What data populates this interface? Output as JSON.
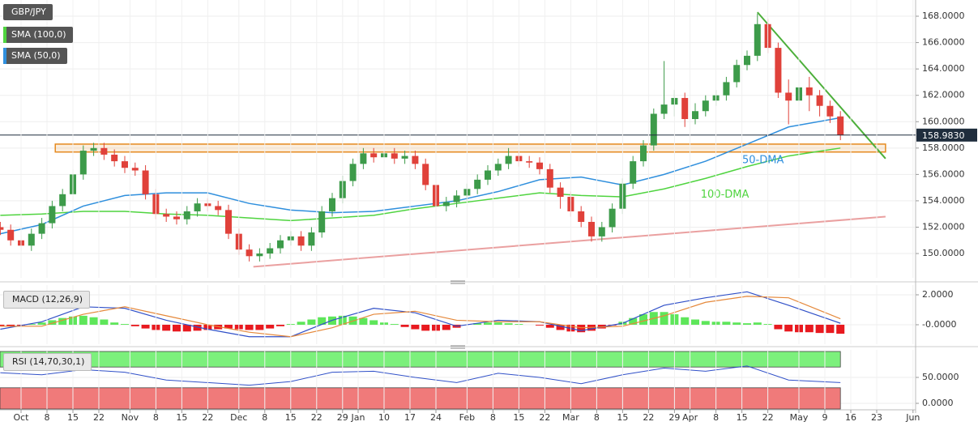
{
  "chart_data": [
    {
      "type": "candlestick",
      "symbol": "GBP/JPY",
      "xlim": [
        -4.06,
        172.5
      ],
      "ylim": [
        148.16,
        169.23
      ],
      "yticks": [
        {
          "value": 150,
          "label": "150.0000"
        },
        {
          "value": 152,
          "label": "152.0000"
        },
        {
          "value": 154,
          "label": "154.0000"
        },
        {
          "value": 156,
          "label": "156.0000"
        },
        {
          "value": 158,
          "label": "158.0000"
        },
        {
          "value": 160,
          "label": "160.0000"
        },
        {
          "value": 162,
          "label": "162.0000"
        },
        {
          "value": 164,
          "label": "164.0000"
        },
        {
          "value": 166,
          "label": "166.0000"
        },
        {
          "value": 168,
          "label": "168.0000"
        }
      ],
      "grid": true,
      "up_color": "#3d9b4a",
      "down_color": "#e0413a",
      "x": [
        -4,
        -2,
        0,
        2,
        4,
        6,
        8,
        10,
        12,
        14,
        16,
        18,
        20,
        22,
        24,
        26,
        28,
        30,
        32,
        34,
        36,
        38,
        40,
        42,
        44,
        46,
        48,
        50,
        52,
        54,
        56,
        58,
        60,
        62,
        64,
        66,
        68,
        70,
        72,
        74,
        76,
        78,
        80,
        82,
        84,
        86,
        88,
        90,
        92,
        94,
        96,
        98,
        100,
        102,
        104,
        106,
        108,
        110,
        112,
        114,
        116,
        118,
        120,
        122,
        124,
        126,
        128,
        130,
        132,
        134,
        136,
        138,
        140,
        142,
        144,
        146,
        148,
        150,
        152,
        154,
        156,
        158
      ],
      "open": [
        152,
        151.8,
        151,
        150.6,
        151.5,
        152.3,
        153.6,
        154.5,
        156,
        157.8,
        158,
        157.5,
        157,
        156.5,
        156.3,
        154.5,
        153,
        152.8,
        152.6,
        153.2,
        153.8,
        153.6,
        153.3,
        151.5,
        150.3,
        149.8,
        150,
        150.4,
        151,
        151.3,
        150.6,
        151.6,
        153.2,
        154.2,
        155.5,
        156.8,
        157.6,
        157.3,
        157.6,
        157.2,
        157.4,
        156.8,
        155.2,
        153.6,
        153.9,
        154.4,
        154.9,
        155.6,
        156.3,
        156.8,
        157.4,
        157,
        156.9,
        156.4,
        155,
        154.3,
        153.2,
        152.4,
        151.3,
        152,
        153.4,
        155.3,
        157,
        158.2,
        160.6,
        161.3,
        161.8,
        160.2,
        160.8,
        161.6,
        162,
        163,
        164.3,
        165,
        167.4,
        165.6,
        162.2,
        161.6,
        162.6,
        162,
        161.2,
        160.4
      ],
      "high": [
        152.4,
        152.2,
        151.4,
        151.9,
        152.7,
        154.0,
        154.9,
        156.4,
        158.2,
        158.4,
        158.4,
        157.9,
        157.4,
        156.9,
        156.7,
        154.9,
        153.4,
        153.2,
        153.6,
        154.2,
        154.2,
        154.0,
        153.7,
        151.9,
        150.7,
        150.4,
        150.8,
        151.4,
        151.7,
        151.7,
        152.0,
        153.6,
        154.6,
        155.9,
        157.2,
        158.0,
        158.0,
        158.0,
        158.0,
        157.8,
        157.8,
        157.2,
        155.6,
        154.3,
        154.8,
        155.3,
        156.0,
        156.7,
        157.2,
        158.0,
        157.8,
        157.4,
        157.3,
        156.8,
        155.4,
        154.7,
        153.6,
        152.8,
        152.4,
        153.8,
        155.7,
        157.4,
        158.6,
        161.0,
        164.6,
        162.4,
        162.2,
        161.4,
        162.0,
        162.4,
        163.4,
        164.7,
        165.4,
        168.2,
        167.8,
        166.0,
        163.2,
        164.2,
        163.4,
        162.4,
        161.6,
        160.8
      ],
      "low": [
        151.4,
        150.6,
        150.2,
        150.2,
        151.1,
        151.9,
        153.2,
        154.1,
        155.6,
        157.4,
        157.1,
        156.6,
        156.1,
        155.9,
        154.1,
        152.6,
        152.4,
        152.2,
        152.2,
        152.8,
        153.2,
        152.9,
        151.1,
        149.9,
        149.4,
        149.4,
        149.6,
        150.0,
        150.6,
        150.2,
        150.2,
        151.2,
        152.8,
        153.8,
        155.1,
        156.4,
        156.9,
        156.9,
        156.8,
        156.8,
        156.4,
        154.8,
        153.2,
        153.2,
        153.5,
        154.0,
        154.5,
        155.2,
        155.9,
        156.4,
        156.6,
        156.5,
        156.0,
        154.6,
        153.4,
        152.8,
        152.0,
        150.9,
        150.9,
        151.6,
        153.0,
        154.9,
        156.6,
        157.8,
        160.2,
        160.4,
        159.6,
        159.8,
        160.4,
        161.2,
        161.6,
        162.6,
        163.9,
        164.6,
        165.2,
        161.8,
        159.8,
        161.2,
        160.8,
        160.4,
        159.9,
        158.6
      ],
      "close": [
        151.8,
        151,
        150.6,
        151.5,
        152.3,
        153.6,
        154.5,
        156,
        157.8,
        158,
        157.5,
        157,
        156.5,
        156.3,
        154.5,
        153,
        152.8,
        152.6,
        153.2,
        153.8,
        153.6,
        153.3,
        151.5,
        150.3,
        149.8,
        150,
        150.4,
        151,
        151.3,
        150.6,
        151.6,
        153.2,
        154.2,
        155.5,
        156.8,
        157.6,
        157.3,
        157.6,
        157.2,
        157.4,
        156.8,
        155.2,
        153.6,
        153.9,
        154.4,
        154.9,
        155.6,
        156.3,
        156.8,
        157.4,
        157,
        156.9,
        156.4,
        155,
        154.3,
        153.2,
        152.4,
        151.3,
        152,
        153.4,
        155.3,
        157,
        158.2,
        160.6,
        161.3,
        161.8,
        160.2,
        160.8,
        161.6,
        162,
        163,
        164.3,
        165,
        167.4,
        165.6,
        162.2,
        161.6,
        162.6,
        162,
        161.2,
        160.4,
        158.98
      ],
      "series": [
        {
          "name": "SMA (100,0)",
          "label": "100-DMA",
          "color": "#4fd43f",
          "x": [
            -4,
            4,
            12,
            20,
            28,
            36,
            44,
            52,
            60,
            68,
            76,
            84,
            92,
            100,
            108,
            116,
            124,
            132,
            140,
            148,
            158
          ],
          "values": [
            152.9,
            153.0,
            153.2,
            153.2,
            153.0,
            152.9,
            152.7,
            152.5,
            152.7,
            152.9,
            153.4,
            153.8,
            154.2,
            154.6,
            154.4,
            154.3,
            154.9,
            155.7,
            156.6,
            157.4,
            158.0
          ]
        },
        {
          "name": "SMA (50,0)",
          "label": "50-DMA",
          "color": "#2f8fdd",
          "x": [
            -4,
            4,
            12,
            20,
            28,
            36,
            44,
            52,
            60,
            68,
            76,
            84,
            92,
            100,
            108,
            116,
            124,
            132,
            140,
            148,
            158
          ],
          "values": [
            151.5,
            152.2,
            153.6,
            154.4,
            154.6,
            154.6,
            153.8,
            153.3,
            153.1,
            153.2,
            153.6,
            154.0,
            154.7,
            155.6,
            155.8,
            155.2,
            156.0,
            157.0,
            158.3,
            159.6,
            160.3
          ]
        }
      ],
      "zone": {
        "ylim": [
          157.7,
          158.3
        ],
        "xlim": [
          6.6,
          166.7
        ],
        "color": "#e58a1f"
      },
      "trendlines": [
        {
          "color": "#4caf3a",
          "x": [
            142,
            166.7
          ],
          "values": [
            168.3,
            157.2
          ]
        },
        {
          "color": "#eaa0a0",
          "x": [
            44.8,
            166.7
          ],
          "values": [
            149.0,
            152.8
          ]
        }
      ],
      "last_price": {
        "value": 158.983,
        "label": "158.9830"
      }
    },
    {
      "type": "macd",
      "title": "MACD (12,26,9)",
      "xlim": [
        -4.06,
        172.5
      ],
      "ylim": [
        -1.3,
        2.65
      ],
      "yticks": [
        {
          "value": 2,
          "label": "2.0000"
        },
        {
          "value": 0,
          "label": "-0.0000"
        }
      ],
      "grid": true,
      "histogram": {
        "up_color": "#5ee65a",
        "down_color": "#e8191f",
        "x": [
          -4,
          -2,
          0,
          2,
          4,
          6,
          8,
          10,
          12,
          14,
          16,
          18,
          20,
          22,
          24,
          26,
          28,
          30,
          32,
          34,
          36,
          38,
          40,
          42,
          44,
          46,
          48,
          50,
          52,
          54,
          56,
          58,
          60,
          62,
          64,
          66,
          68,
          70,
          72,
          74,
          76,
          78,
          80,
          82,
          84,
          86,
          88,
          90,
          92,
          94,
          96,
          98,
          100,
          102,
          104,
          106,
          108,
          110,
          112,
          114,
          116,
          118,
          120,
          122,
          124,
          126,
          128,
          130,
          132,
          134,
          136,
          138,
          140,
          142,
          144,
          146,
          148,
          150,
          152,
          154,
          156,
          158
        ],
        "values": [
          -0.1,
          -0.1,
          -0.05,
          0.05,
          0.15,
          0.3,
          0.45,
          0.55,
          0.6,
          0.5,
          0.35,
          0.15,
          0.05,
          -0.1,
          -0.25,
          -0.35,
          -0.4,
          -0.45,
          -0.45,
          -0.4,
          -0.35,
          -0.3,
          -0.25,
          -0.3,
          -0.35,
          -0.35,
          -0.25,
          -0.1,
          0.05,
          0.2,
          0.35,
          0.5,
          0.55,
          0.6,
          0.55,
          0.45,
          0.3,
          0.15,
          0.05,
          -0.15,
          -0.3,
          -0.4,
          -0.4,
          -0.35,
          -0.2,
          0.0,
          0.1,
          0.15,
          0.15,
          0.1,
          0.05,
          0.0,
          -0.05,
          -0.2,
          -0.35,
          -0.45,
          -0.5,
          -0.4,
          -0.25,
          -0.05,
          0.2,
          0.45,
          0.7,
          0.85,
          0.85,
          0.7,
          0.5,
          0.35,
          0.25,
          0.2,
          0.2,
          0.15,
          0.1,
          0.15,
          0.05,
          -0.3,
          -0.45,
          -0.5,
          -0.5,
          -0.55,
          -0.55,
          -0.6
        ]
      },
      "series": [
        {
          "color": "#3050c8",
          "x": [
            -4,
            4,
            12,
            20,
            28,
            36,
            44,
            52,
            60,
            68,
            76,
            84,
            92,
            100,
            108,
            116,
            124,
            132,
            140,
            148,
            158
          ],
          "values": [
            -0.3,
            0.2,
            1.2,
            1.1,
            0.3,
            -0.3,
            -0.8,
            -0.8,
            0.3,
            1.1,
            0.8,
            -0.1,
            0.3,
            0.2,
            -0.4,
            0.1,
            1.3,
            1.8,
            2.2,
            1.3,
            0.1
          ]
        },
        {
          "color": "#e5883a",
          "x": [
            -4,
            4,
            12,
            20,
            28,
            36,
            44,
            52,
            60,
            68,
            76,
            84,
            92,
            100,
            108,
            116,
            124,
            132,
            140,
            148,
            158
          ],
          "values": [
            -0.1,
            -0.1,
            0.7,
            1.2,
            0.6,
            0,
            -0.5,
            -0.8,
            -0.2,
            0.7,
            0.9,
            0.3,
            0.2,
            0.2,
            -0.2,
            -0.1,
            0.6,
            1.5,
            1.9,
            1.8,
            0.4
          ]
        }
      ]
    },
    {
      "type": "rsi",
      "title": "RSI (14,70,30,1)",
      "xlim": [
        -4.06,
        172.5
      ],
      "ylim": [
        -10.9,
        103.1
      ],
      "yticks": [
        {
          "value": 50,
          "label": "50.0000"
        },
        {
          "value": 0,
          "label": "0.0000"
        }
      ],
      "grid": true,
      "zones": [
        {
          "range": [
            70,
            100
          ],
          "color": "#7cf07c"
        },
        {
          "range": [
            -10.9,
            30
          ],
          "color": "#f07a7a"
        }
      ],
      "series": [
        {
          "color": "#3050c8",
          "x": [
            -4,
            4,
            12,
            20,
            28,
            36,
            44,
            52,
            60,
            68,
            76,
            84,
            92,
            100,
            108,
            116,
            124,
            132,
            140,
            148,
            158
          ],
          "values": [
            59,
            55,
            65,
            60,
            45,
            40,
            35,
            42,
            60,
            62,
            50,
            40,
            58,
            50,
            38,
            55,
            68,
            62,
            72,
            45,
            40
          ]
        }
      ],
      "xticks": [
        {
          "value": 0,
          "label": "Oct"
        },
        {
          "value": 5,
          "label": "8"
        },
        {
          "value": 10,
          "label": "15"
        },
        {
          "value": 15,
          "label": "22"
        },
        {
          "value": 21,
          "label": "Nov"
        },
        {
          "value": 26,
          "label": "8"
        },
        {
          "value": 31,
          "label": "15"
        },
        {
          "value": 36,
          "label": "22"
        },
        {
          "value": 42,
          "label": "Dec"
        },
        {
          "value": 47,
          "label": "8"
        },
        {
          "value": 52,
          "label": "15"
        },
        {
          "value": 57,
          "label": "22"
        },
        {
          "value": 62,
          "label": "29"
        },
        {
          "value": 65,
          "label": "Jan"
        },
        {
          "value": 70,
          "label": "10"
        },
        {
          "value": 75,
          "label": "17"
        },
        {
          "value": 80,
          "label": "24"
        },
        {
          "value": 86,
          "label": "Feb"
        },
        {
          "value": 91,
          "label": "8"
        },
        {
          "value": 96,
          "label": "15"
        },
        {
          "value": 101,
          "label": "22"
        },
        {
          "value": 106,
          "label": "Mar"
        },
        {
          "value": 111,
          "label": "8"
        },
        {
          "value": 116,
          "label": "15"
        },
        {
          "value": 121,
          "label": "22"
        },
        {
          "value": 126,
          "label": "29"
        },
        {
          "value": 129,
          "label": "Apr"
        },
        {
          "value": 134,
          "label": "8"
        },
        {
          "value": 139,
          "label": "15"
        },
        {
          "value": 144,
          "label": "22"
        },
        {
          "value": 150,
          "label": "May"
        },
        {
          "value": 155,
          "label": "9"
        },
        {
          "value": 160,
          "label": "16"
        },
        {
          "value": 165,
          "label": "23"
        },
        {
          "value": 172,
          "label": "Jun"
        }
      ]
    }
  ]
}
